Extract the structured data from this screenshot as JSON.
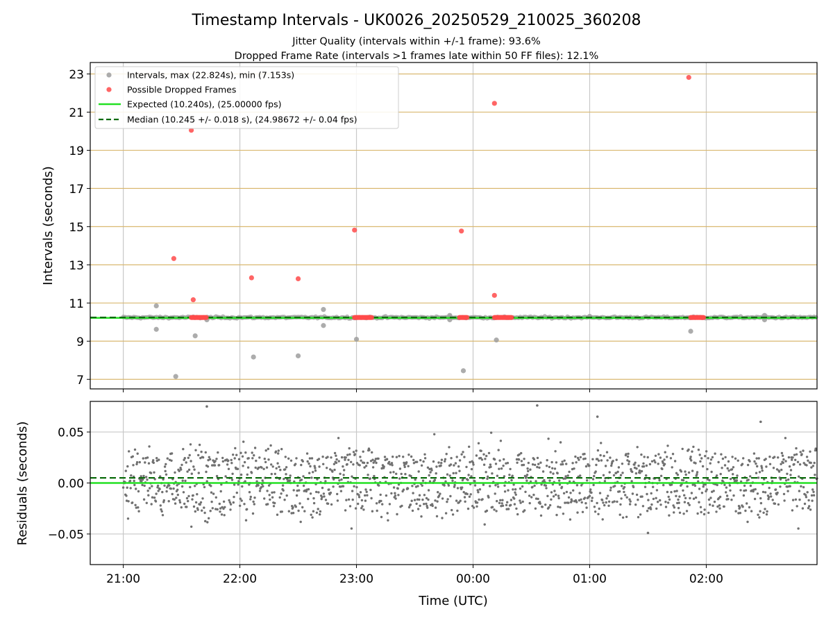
{
  "header": {
    "title": "Timestamp Intervals - UK0026_20250529_210025_360208",
    "subtitle_1": "Jitter Quality (intervals within +/-1 frame): 93.6%",
    "subtitle_2": "Dropped Frame Rate (intervals >1 frames late within 50 FF files): 12.1%"
  },
  "colors": {
    "interval_point": "#9e9e9e",
    "dropped_point": "#ff4a4a",
    "expected_line": "#22e022",
    "median_line": "#0b6b0b",
    "residual_point": "#707070",
    "top_grid": "#d9b870",
    "grid": "#c8c8c8"
  },
  "chart_data": [
    {
      "type": "scatter",
      "panel": "intervals",
      "ylabel": "Intervals (seconds)",
      "ylim": [
        6.5,
        23.6
      ],
      "xlim": [
        "20:43",
        "02:57"
      ],
      "yticks": [
        "7",
        "9",
        "11",
        "13",
        "15",
        "17",
        "19",
        "21",
        "23"
      ],
      "xticks": [
        "21:00",
        "22:00",
        "23:00",
        "00:00",
        "01:00",
        "02:00"
      ],
      "grid": "horizontal lines tan, vertical lines gray",
      "legend": {
        "placement": "top-left",
        "entries": [
          "Intervals, max (22.824s), min (7.153s)",
          "Possible Dropped Frames",
          "Expected (10.240s), (25.00000 fps)",
          "Median (10.245 +/- 0.018 s), (24.98672 +/- 0.04 fps)"
        ]
      },
      "lines": [
        {
          "name": "Expected (10.240s), (25.00000 fps)",
          "y": 10.24,
          "style": "solid",
          "color": "#22e022"
        },
        {
          "name": "Median (10.245 +/- 0.018 s), (24.98672 +/- 0.04 fps)",
          "y": 10.245,
          "style": "dashed",
          "color": "#0b6b0b"
        }
      ],
      "band": {
        "name": "Intervals",
        "y": 10.24,
        "x_from": "21:00",
        "x_to": "02:57"
      },
      "series": [
        {
          "name": "Intervals, max (22.824s), min (7.153s)",
          "points": [
            {
              "x": "21:17",
              "y": 10.85
            },
            {
              "x": "21:17",
              "y": 9.62
            },
            {
              "x": "21:27",
              "y": 7.15
            },
            {
              "x": "21:37",
              "y": 9.28
            },
            {
              "x": "21:43",
              "y": 10.12
            },
            {
              "x": "22:07",
              "y": 8.17
            },
            {
              "x": "22:30",
              "y": 8.23
            },
            {
              "x": "22:43",
              "y": 10.66
            },
            {
              "x": "22:43",
              "y": 9.82
            },
            {
              "x": "23:00",
              "y": 9.1
            },
            {
              "x": "23:48",
              "y": 10.35
            },
            {
              "x": "23:48",
              "y": 10.12
            },
            {
              "x": "23:55",
              "y": 7.45
            },
            {
              "x": "00:12",
              "y": 9.06
            },
            {
              "x": "01:00",
              "y": 10.3
            },
            {
              "x": "01:52",
              "y": 9.52
            },
            {
              "x": "02:30",
              "y": 10.35
            },
            {
              "x": "02:30",
              "y": 10.12
            }
          ]
        },
        {
          "name": "Possible Dropped Frames",
          "points": [
            {
              "x": "21:26",
              "y": 13.33
            },
            {
              "x": "21:35",
              "y": 20.05
            },
            {
              "x": "21:36",
              "y": 11.17
            },
            {
              "x": "22:06",
              "y": 12.32
            },
            {
              "x": "22:30",
              "y": 12.27
            },
            {
              "x": "22:59",
              "y": 14.82
            },
            {
              "x": "23:54",
              "y": 14.77
            },
            {
              "x": "00:11",
              "y": 21.46
            },
            {
              "x": "00:11",
              "y": 11.4
            },
            {
              "x": "01:51",
              "y": 22.82
            }
          ],
          "clusters_at_10_24": [
            {
              "x_from": "21:35",
              "x_to": "21:43"
            },
            {
              "x_from": "22:59",
              "x_to": "23:08"
            },
            {
              "x_from": "23:53",
              "x_to": "23:57"
            },
            {
              "x_from": "00:11",
              "x_to": "00:20"
            },
            {
              "x_from": "01:52",
              "x_to": "01:59"
            }
          ]
        }
      ]
    },
    {
      "type": "scatter",
      "panel": "residuals",
      "ylabel": "Residuals (seconds)",
      "xlabel": "Time (UTC)",
      "ylim": [
        -0.08,
        0.08
      ],
      "xlim": [
        "20:43",
        "02:57"
      ],
      "yticks": [
        "0.05",
        "0.00",
        "−0.05"
      ],
      "xticks": [
        "21:00",
        "22:00",
        "23:00",
        "00:00",
        "01:00",
        "02:00"
      ],
      "grid": "both, gray",
      "lines": [
        {
          "name": "Expected",
          "y": 0.0,
          "style": "solid",
          "color": "#22e022"
        },
        {
          "name": "Median",
          "y": 0.005,
          "style": "dashed",
          "color": "#0b6b0b"
        }
      ],
      "residual_model": {
        "x_from": "21:00",
        "x_to": "02:57",
        "count": 1600,
        "levels": [
          0.021,
          0.0,
          -0.019
        ],
        "spread_sd": 0.015,
        "range": [
          -0.05,
          0.078
        ],
        "outliers": [
          {
            "x": "21:43",
            "y": 0.075
          },
          {
            "x": "00:33",
            "y": 0.076
          },
          {
            "x": "01:04",
            "y": 0.065
          },
          {
            "x": "01:30",
            "y": -0.049
          },
          {
            "x": "02:28",
            "y": 0.06
          }
        ]
      }
    }
  ]
}
